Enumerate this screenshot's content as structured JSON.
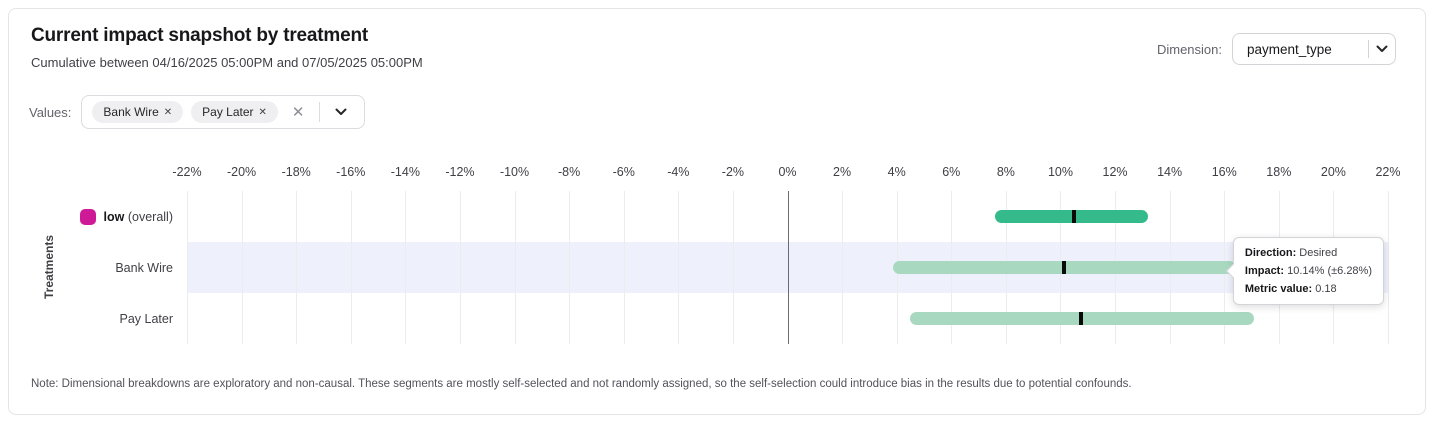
{
  "header": {
    "title": "Current impact snapshot by treatment",
    "subtitle": "Cumulative between 04/16/2025 05:00PM and 07/05/2025 05:00PM",
    "dimension_label": "Dimension:",
    "dimension_value": "payment_type"
  },
  "values_filter": {
    "label": "Values:",
    "chips": [
      {
        "label": "Bank Wire"
      },
      {
        "label": "Pay Later"
      }
    ]
  },
  "icons": {
    "remove_x": "✕",
    "clear_x": "✕"
  },
  "tooltip": {
    "direction_label": "Direction:",
    "direction_value": "Desired",
    "impact_label": "Impact:",
    "impact_value": "10.14% (±6.28%)",
    "metric_label": "Metric value:",
    "metric_value": "0.18"
  },
  "note": "Note: Dimensional breakdowns are exploratory and non-causal. These segments are mostly self-selected and not randomly assigned, so the self-selection could introduce bias in the results due to potential confounds.",
  "chart_data": {
    "type": "bar",
    "orientation": "horizontal",
    "title": "Current impact snapshot by treatment",
    "ylabel": "Treatments",
    "x_axis": {
      "min": -22,
      "max": 22,
      "tick_step": 2,
      "unit": "%"
    },
    "grid": true,
    "zero_line": true,
    "marker_color": "#0a0a0a",
    "highlight_color": "#eef0fb",
    "rows": [
      {
        "label": "low",
        "label_suffix": "(overall)",
        "swatch_color": "#cf1a98",
        "bar_color": "#34ba8b",
        "impact_pct": 10.5,
        "ci_low_pct": 7.6,
        "ci_high_pct": 13.2,
        "highlighted": false
      },
      {
        "label": "Bank Wire",
        "bar_color": "#a8d9c0",
        "impact_pct": 10.14,
        "ci_low_pct": 3.86,
        "ci_high_pct": 16.42,
        "highlighted": true,
        "direction": "Desired",
        "metric_value": 0.18
      },
      {
        "label": "Pay Later",
        "bar_color": "#a8d9c0",
        "impact_pct": 10.75,
        "ci_low_pct": 4.5,
        "ci_high_pct": 17.1,
        "highlighted": false
      }
    ]
  }
}
